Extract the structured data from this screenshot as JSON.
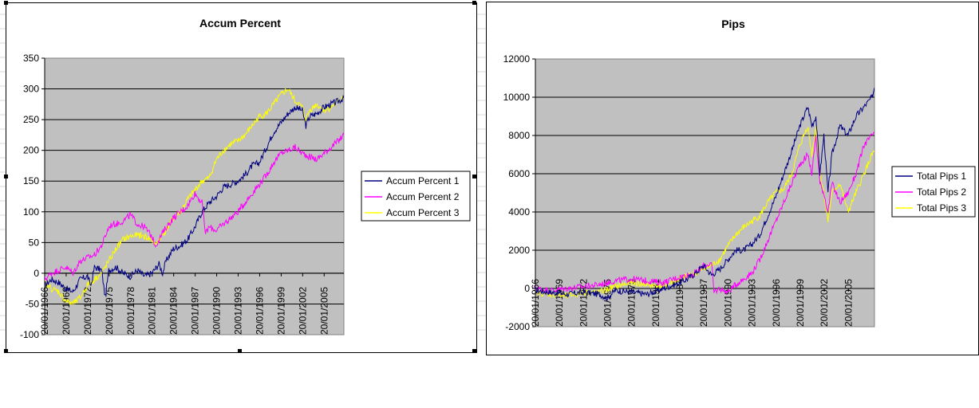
{
  "colors": {
    "series1": "#000080",
    "series2": "#ff00ff",
    "series3": "#ffff00",
    "plot_bg": "#c0c0c0",
    "gridline": "#000000"
  },
  "chart_data": [
    {
      "type": "line",
      "title": "Accum Percent",
      "xlabel": "",
      "ylabel": "",
      "ylim": [
        -100,
        350
      ],
      "yticks": [
        -100,
        -50,
        0,
        50,
        100,
        150,
        200,
        250,
        300,
        350
      ],
      "ytick_labels": [
        "-100",
        "-50",
        "0",
        "50",
        "100",
        "150",
        "200",
        "250",
        "300",
        "350"
      ],
      "xlim": [
        1966.05,
        2007.8
      ],
      "xtick_labels": [
        "20/01/1966",
        "20/01/1969",
        "20/01/1972",
        "20/01/1975",
        "20/01/1978",
        "20/01/1981",
        "20/01/1984",
        "20/01/1987",
        "20/01/1990",
        "20/01/1993",
        "20/01/1996",
        "20/01/1999",
        "20/01/2002",
        "20/01/2005"
      ],
      "xticks": [
        1966.05,
        1969.05,
        1972.05,
        1975.05,
        1978.05,
        1981.05,
        1984.05,
        1987.05,
        1990.05,
        1993.05,
        1996.05,
        1999.05,
        2002.05,
        2005.05
      ],
      "grid": true,
      "legend_position": "right",
      "series": [
        {
          "name": "Accum Percent 1",
          "x": [
            1966.05,
            1967.0,
            1968.0,
            1969.0,
            1970.0,
            1971.0,
            1972.0,
            1972.5,
            1973.0,
            1974.0,
            1974.5,
            1975.0,
            1976.0,
            1977.0,
            1978.0,
            1979.0,
            1980.0,
            1981.0,
            1982.0,
            1982.5,
            1983.0,
            1984.0,
            1985.0,
            1986.0,
            1987.0,
            1988.0,
            1989.0,
            1990.0,
            1991.0,
            1992.0,
            1993.0,
            1994.0,
            1995.0,
            1996.0,
            1997.0,
            1998.0,
            1999.0,
            2000.0,
            2001.0,
            2002.0,
            2002.5,
            2003.0,
            2004.0,
            2005.0,
            2006.0,
            2007.0,
            2007.8
          ],
          "y": [
            -20,
            -10,
            -15,
            -25,
            -30,
            -10,
            -5,
            -20,
            10,
            5,
            -40,
            5,
            10,
            0,
            -5,
            5,
            -5,
            0,
            15,
            0,
            20,
            40,
            45,
            55,
            75,
            100,
            115,
            125,
            140,
            145,
            150,
            160,
            175,
            180,
            205,
            230,
            245,
            260,
            270,
            265,
            240,
            255,
            260,
            270,
            275,
            280,
            285
          ]
        },
        {
          "name": "Accum Percent 2",
          "x": [
            1966.05,
            1967.0,
            1968.0,
            1969.0,
            1970.0,
            1971.0,
            1972.0,
            1973.0,
            1974.0,
            1975.0,
            1975.5,
            1976.0,
            1977.0,
            1978.0,
            1979.0,
            1980.0,
            1981.0,
            1981.5,
            1982.0,
            1983.0,
            1984.0,
            1985.0,
            1986.0,
            1987.0,
            1988.0,
            1988.5,
            1989.0,
            1990.0,
            1991.0,
            1992.0,
            1993.0,
            1994.0,
            1995.0,
            1996.0,
            1997.0,
            1998.0,
            1999.0,
            2000.0,
            2001.0,
            2002.0,
            2003.0,
            2004.0,
            2005.0,
            2006.0,
            2007.0,
            2007.8
          ],
          "y": [
            -10,
            0,
            5,
            10,
            0,
            20,
            25,
            30,
            45,
            75,
            80,
            80,
            85,
            95,
            80,
            75,
            60,
            45,
            55,
            75,
            90,
            100,
            110,
            130,
            115,
            65,
            75,
            70,
            80,
            90,
            100,
            115,
            130,
            145,
            160,
            180,
            195,
            200,
            205,
            195,
            190,
            185,
            195,
            205,
            215,
            225
          ]
        },
        {
          "name": "Accum Percent 3",
          "x": [
            1966.05,
            1967.0,
            1968.0,
            1969.0,
            1970.0,
            1971.0,
            1972.0,
            1973.0,
            1974.0,
            1975.0,
            1976.0,
            1977.0,
            1978.0,
            1979.0,
            1980.0,
            1981.0,
            1981.5,
            1982.0,
            1983.0,
            1984.0,
            1985.0,
            1986.0,
            1987.0,
            1988.0,
            1989.0,
            1990.0,
            1991.0,
            1992.0,
            1993.0,
            1994.0,
            1995.0,
            1996.0,
            1997.0,
            1998.0,
            1999.0,
            2000.0,
            2001.0,
            2002.0,
            2002.5,
            2003.0,
            2004.0,
            2005.0,
            2006.0,
            2007.0,
            2007.8
          ],
          "y": [
            -15,
            -25,
            -30,
            -45,
            -50,
            -40,
            -20,
            -10,
            0,
            20,
            40,
            55,
            60,
            62,
            60,
            55,
            45,
            55,
            70,
            90,
            100,
            120,
            135,
            150,
            155,
            185,
            200,
            210,
            215,
            225,
            240,
            255,
            260,
            275,
            290,
            300,
            280,
            270,
            250,
            265,
            275,
            265,
            270,
            280,
            290
          ]
        }
      ]
    },
    {
      "type": "line",
      "title": "Pips",
      "xlabel": "",
      "ylabel": "",
      "ylim": [
        -2000,
        12000
      ],
      "yticks": [
        -2000,
        0,
        2000,
        4000,
        6000,
        8000,
        10000,
        12000
      ],
      "ytick_labels": [
        "-2000",
        "0",
        "2000",
        "4000",
        "6000",
        "8000",
        "10000",
        "12000"
      ],
      "xlim": [
        1966.05,
        2008.3
      ],
      "xtick_labels": [
        "20/01/1966",
        "20/01/1969",
        "20/01/1972",
        "20/01/1975",
        "20/01/1978",
        "20/01/1981",
        "20/01/1984",
        "20/01/1987",
        "20/01/1990",
        "20/01/1993",
        "20/01/1996",
        "20/01/1999",
        "20/01/2002",
        "20/01/2005"
      ],
      "xticks": [
        1966.05,
        1969.05,
        1972.05,
        1975.05,
        1978.05,
        1981.05,
        1984.05,
        1987.05,
        1990.05,
        1993.05,
        1996.05,
        1999.05,
        2002.05,
        2005.05
      ],
      "grid": true,
      "legend_position": "right",
      "series": [
        {
          "name": "Total Pips 1",
          "x": [
            1966.05,
            1968.0,
            1970.0,
            1972.0,
            1974.0,
            1975.0,
            1976.0,
            1978.0,
            1980.0,
            1982.0,
            1984.0,
            1985.0,
            1986.0,
            1987.0,
            1988.0,
            1989.0,
            1990.0,
            1991.0,
            1992.0,
            1993.0,
            1994.0,
            1995.0,
            1996.0,
            1997.0,
            1998.0,
            1999.0,
            2000.0,
            2000.5,
            2001.0,
            2001.5,
            2002.0,
            2002.5,
            2003.0,
            2004.0,
            2005.0,
            2006.0,
            2007.0,
            2008.0,
            2008.3
          ],
          "y": [
            -100,
            -200,
            -300,
            -200,
            -300,
            -500,
            -100,
            -200,
            -300,
            0,
            300,
            500,
            800,
            1200,
            700,
            1000,
            1500,
            2000,
            2000,
            2300,
            2800,
            3800,
            4800,
            6000,
            7200,
            8500,
            9500,
            8500,
            9000,
            6000,
            8000,
            5000,
            7000,
            8500,
            8000,
            9000,
            9500,
            10000,
            10500
          ]
        },
        {
          "name": "Total Pips 2",
          "x": [
            1966.05,
            1968.0,
            1970.0,
            1972.0,
            1974.0,
            1976.0,
            1978.0,
            1980.0,
            1982.0,
            1984.0,
            1986.0,
            1987.0,
            1988.0,
            1988.3,
            1989.0,
            1990.0,
            1991.0,
            1992.0,
            1993.0,
            1994.0,
            1995.0,
            1996.0,
            1997.0,
            1998.0,
            1999.0,
            2000.0,
            2000.5,
            2001.0,
            2001.5,
            2002.0,
            2002.5,
            2003.0,
            2004.0,
            2005.0,
            2006.0,
            2007.0,
            2008.0,
            2008.3
          ],
          "y": [
            0,
            -100,
            0,
            100,
            200,
            400,
            500,
            400,
            300,
            600,
            800,
            1200,
            1300,
            -200,
            0,
            -200,
            200,
            500,
            800,
            1500,
            2500,
            3500,
            4500,
            5500,
            6500,
            7000,
            6000,
            8000,
            5500,
            5000,
            4000,
            5500,
            4500,
            5000,
            6000,
            7500,
            8000,
            8200
          ]
        },
        {
          "name": "Total Pips 3",
          "x": [
            1966.05,
            1968.0,
            1970.0,
            1972.0,
            1974.0,
            1976.0,
            1978.0,
            1980.0,
            1982.0,
            1984.0,
            1986.0,
            1987.0,
            1988.0,
            1989.0,
            1990.0,
            1991.0,
            1992.0,
            1993.0,
            1994.0,
            1995.0,
            1996.0,
            1997.0,
            1998.0,
            1999.0,
            2000.0,
            2000.5,
            2001.0,
            2001.5,
            2002.0,
            2002.5,
            2003.0,
            2004.0,
            2005.0,
            2006.0,
            2007.0,
            2008.0,
            2008.3
          ],
          "y": [
            -200,
            -300,
            -400,
            -200,
            -200,
            100,
            300,
            200,
            100,
            500,
            800,
            1000,
            1200,
            1500,
            2200,
            2800,
            3200,
            3500,
            3800,
            4500,
            5000,
            5200,
            6000,
            7500,
            8500,
            7000,
            8500,
            6000,
            5000,
            3500,
            5000,
            5500,
            4000,
            5000,
            6000,
            7000,
            7200
          ]
        }
      ]
    }
  ]
}
